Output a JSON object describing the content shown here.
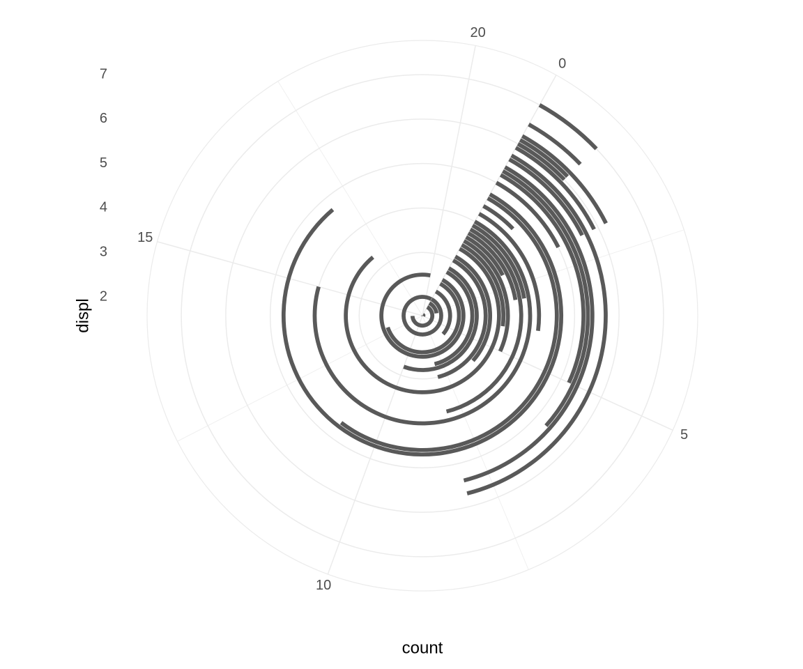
{
  "chart_data": {
    "type": "bar",
    "coord": "polar",
    "x_label": "count",
    "y_label": "displ",
    "x": [
      1.6,
      1.8,
      1.9,
      2.0,
      2.2,
      2.4,
      2.5,
      2.7,
      2.8,
      3.0,
      3.1,
      3.3,
      3.4,
      3.5,
      3.6,
      3.7,
      3.8,
      3.9,
      4.0,
      4.2,
      4.4,
      4.6,
      4.7,
      5.0,
      5.2,
      5.3,
      5.4,
      5.6,
      5.7,
      5.9,
      6.0,
      6.1,
      6.2,
      6.5,
      7.0
    ],
    "values": [
      5,
      14,
      3,
      21,
      6,
      13,
      20,
      8,
      10,
      8,
      6,
      17,
      4,
      5,
      2,
      3,
      8,
      3,
      15,
      4,
      1,
      11,
      17,
      2,
      5,
      6,
      8,
      2,
      8,
      2,
      1,
      1,
      2,
      1,
      1
    ],
    "color": "#595959",
    "thetalim": [
      -1.7,
      19.35
    ],
    "thetaticks": [
      0,
      5,
      10,
      15,
      20
    ],
    "rlim": [
      1.577,
      7.77
    ],
    "rticks": [
      2,
      3,
      4,
      5,
      6,
      7
    ],
    "grid": true
  }
}
